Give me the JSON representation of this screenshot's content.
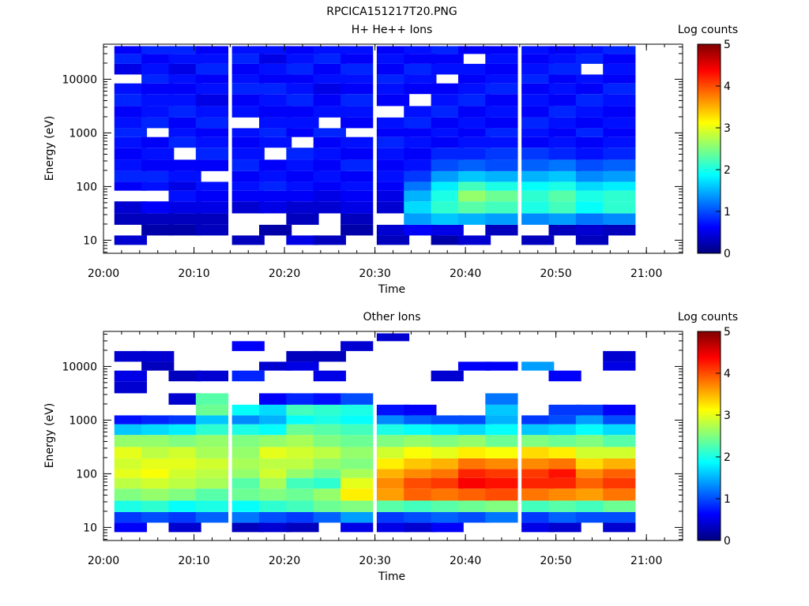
{
  "figure_title": "RPCICA151217T20.PNG",
  "chart_data": [
    {
      "type": "heatmap",
      "title": "H+ He++ Ions",
      "xlabel": "Time",
      "ylabel": "Energy (eV)",
      "x_ticks": [
        "20:00",
        "20:10",
        "20:20",
        "20:30",
        "20:40",
        "20:50",
        "21:00"
      ],
      "x_range": [
        "20:00",
        "21:04"
      ],
      "y_scale": "log",
      "y_ticks": [
        "10",
        "100",
        "1000",
        "10000"
      ],
      "y_range": [
        5.7,
        45000
      ],
      "time_bins": [
        "20:03",
        "20:06",
        "20:09",
        "20:12",
        "20:16",
        "20:19",
        "20:22",
        "20:25",
        "20:28",
        "20:32",
        "20:35",
        "20:38",
        "20:41",
        "20:44",
        "20:48",
        "20:51",
        "20:54",
        "20:57"
      ],
      "energy_bins": [
        10,
        15,
        25,
        40,
        70,
        100,
        150,
        250,
        400,
        700,
        1000,
        1500,
        2500,
        4000,
        7000,
        10000,
        15000,
        25000,
        35000
      ],
      "values": [
        [
          0.4,
          null,
          0.3,
          0.4,
          null,
          0.6,
          0.8,
          0.7,
          0.6,
          0.7,
          0.8,
          0.7,
          0.6,
          0.8,
          0.7,
          null,
          0.5,
          0.8,
          0.6
        ],
        [
          null,
          0.2,
          0.3,
          0.6,
          null,
          0.7,
          0.8,
          0.6,
          0.7,
          0.6,
          null,
          0.8,
          0.7,
          0.7,
          0.6,
          0.8,
          0.7,
          0.6,
          0.8
        ],
        [
          null,
          0.2,
          0.3,
          0.5,
          0.7,
          0.5,
          0.7,
          0.6,
          null,
          0.8,
          0.7,
          0.6,
          0.8,
          0.7,
          0.6,
          0.7,
          0.5,
          0.7,
          0.8
        ],
        [
          null,
          0.3,
          0.3,
          0.5,
          0.6,
          0.7,
          null,
          0.6,
          0.8,
          0.7,
          0.6,
          0.8,
          0.7,
          0.5,
          0.7,
          0.6,
          0.8,
          0.7,
          0.6
        ],
        [
          0.3,
          null,
          null,
          0.4,
          0.6,
          0.7,
          0.6,
          0.8,
          0.7,
          0.6,
          0.7,
          null,
          0.7,
          0.6,
          0.8,
          0.7,
          0.6,
          0.8,
          0.7
        ],
        [
          null,
          0.2,
          null,
          0.5,
          0.6,
          0.8,
          0.7,
          0.6,
          null,
          0.7,
          0.8,
          0.7,
          0.6,
          0.7,
          0.8,
          0.6,
          0.7,
          0.5,
          0.7
        ],
        [
          0.5,
          null,
          0.3,
          0.4,
          0.6,
          0.7,
          0.6,
          0.7,
          0.8,
          null,
          0.6,
          0.7,
          0.6,
          0.8,
          0.7,
          0.6,
          0.8,
          0.7,
          0.6
        ],
        [
          0.3,
          null,
          null,
          0.4,
          0.5,
          0.6,
          0.7,
          0.6,
          0.7,
          0.6,
          0.8,
          null,
          0.7,
          0.6,
          0.5,
          0.7,
          0.6,
          0.8,
          0.7
        ],
        [
          null,
          0.2,
          0.3,
          0.5,
          0.6,
          0.7,
          0.6,
          0.8,
          0.6,
          0.7,
          null,
          0.6,
          0.7,
          0.8,
          0.6,
          0.7,
          0.8,
          0.6,
          0.7
        ],
        [
          0.3,
          0.4,
          null,
          0.4,
          0.5,
          0.6,
          0.7,
          0.6,
          0.7,
          0.8,
          0.6,
          0.7,
          null,
          0.6,
          0.7,
          0.8,
          0.6,
          0.7,
          0.6
        ],
        [
          null,
          0.6,
          1.4,
          1.7,
          1.5,
          1.2,
          0.9,
          0.7,
          0.6,
          0.7,
          0.6,
          0.8,
          0.7,
          null,
          0.6,
          0.7,
          0.8,
          0.6,
          0.7
        ],
        [
          0.2,
          0.5,
          1.6,
          2.1,
          2.0,
          1.8,
          1.4,
          1.0,
          0.8,
          0.6,
          0.7,
          0.6,
          0.8,
          0.7,
          0.6,
          null,
          0.7,
          0.6,
          0.8
        ],
        [
          0.4,
          null,
          1.5,
          2.3,
          2.6,
          2.2,
          1.6,
          1.1,
          0.8,
          0.7,
          0.6,
          0.7,
          0.6,
          0.8,
          0.7,
          0.6,
          0.7,
          null,
          0.6
        ],
        [
          null,
          0.3,
          1.4,
          2.2,
          2.4,
          2.0,
          1.5,
          1.0,
          0.9,
          0.7,
          0.8,
          0.6,
          0.7,
          0.6,
          0.8,
          0.7,
          0.6,
          0.7,
          0.6
        ],
        [
          0.3,
          null,
          1.3,
          2.0,
          2.1,
          1.9,
          1.5,
          1.1,
          0.9,
          0.6,
          0.7,
          0.8,
          0.6,
          0.7,
          0.6,
          0.8,
          0.7,
          0.6,
          0.7
        ],
        [
          null,
          0.3,
          1.4,
          2.2,
          2.3,
          2.0,
          1.6,
          1.2,
          0.8,
          0.7,
          0.6,
          0.7,
          0.8,
          0.6,
          0.7,
          0.6,
          0.8,
          0.7,
          0.6
        ],
        [
          0.3,
          0.4,
          1.2,
          1.9,
          2.0,
          1.7,
          1.3,
          1.0,
          0.7,
          0.6,
          0.8,
          0.6,
          0.7,
          0.8,
          0.6,
          0.7,
          null,
          0.8,
          0.7
        ],
        [
          null,
          0.3,
          1.3,
          2.1,
          2.1,
          1.8,
          1.4,
          1.1,
          0.8,
          0.7,
          0.6,
          0.7,
          0.6,
          0.7,
          0.8,
          0.6,
          0.7,
          0.6,
          0.8
        ]
      ],
      "colorbar": {
        "label": "Log counts",
        "ticks": [
          "0",
          "1",
          "2",
          "3",
          "4",
          "5"
        ],
        "range": [
          0,
          5
        ],
        "colormap": "jet"
      }
    },
    {
      "type": "heatmap",
      "title": "Other Ions",
      "xlabel": "Time",
      "ylabel": "Energy (eV)",
      "x_ticks": [
        "20:00",
        "20:10",
        "20:20",
        "20:30",
        "20:40",
        "20:50",
        "21:00"
      ],
      "x_range": [
        "20:00",
        "21:04"
      ],
      "y_scale": "log",
      "y_ticks": [
        "10",
        "100",
        "1000",
        "10000"
      ],
      "y_range": [
        5.7,
        45000
      ],
      "time_bins": [
        "20:03",
        "20:06",
        "20:09",
        "20:12",
        "20:16",
        "20:19",
        "20:22",
        "20:25",
        "20:28",
        "20:32",
        "20:35",
        "20:38",
        "20:41",
        "20:44",
        "20:48",
        "20:51",
        "20:54",
        "20:57"
      ],
      "energy_bins": [
        10,
        15,
        25,
        40,
        70,
        100,
        150,
        250,
        400,
        700,
        1000,
        1500,
        2500,
        4000,
        7000,
        10000,
        15000,
        25000,
        35000
      ],
      "values": [
        [
          0.6,
          0.9,
          2.0,
          2.5,
          2.8,
          3.0,
          2.9,
          3.0,
          2.6,
          1.6,
          0.7,
          null,
          null,
          0.4,
          0.5,
          null,
          0.4,
          null,
          null
        ],
        [
          null,
          1.0,
          2.1,
          2.6,
          2.9,
          3.1,
          3.0,
          2.8,
          2.6,
          1.7,
          0.8,
          null,
          null,
          null,
          null,
          0.3,
          0.4,
          null,
          null
        ],
        [
          0.4,
          0.9,
          1.9,
          2.5,
          2.8,
          2.9,
          3.0,
          2.9,
          2.5,
          1.8,
          0.9,
          null,
          0.4,
          null,
          0.3,
          null,
          null,
          null,
          null
        ],
        [
          null,
          1.1,
          2.0,
          2.3,
          2.7,
          2.8,
          2.9,
          2.7,
          2.6,
          2.1,
          1.6,
          2.4,
          2.3,
          null,
          0.4,
          null,
          null,
          null,
          null
        ],
        [
          0.3,
          1.2,
          1.9,
          2.4,
          2.3,
          2.6,
          2.7,
          2.6,
          2.5,
          2.0,
          1.3,
          1.9,
          null,
          null,
          0.8,
          null,
          null,
          0.6,
          null
        ],
        [
          0.4,
          1.0,
          2.1,
          2.5,
          2.7,
          2.9,
          2.8,
          3.0,
          2.6,
          1.9,
          1.5,
          1.7,
          0.6,
          null,
          null,
          0.4,
          null,
          null,
          null
        ],
        [
          0.3,
          0.9,
          2.2,
          2.4,
          2.2,
          2.6,
          2.8,
          2.9,
          2.7,
          2.4,
          1.9,
          2.2,
          0.8,
          null,
          null,
          0.5,
          0.3,
          null,
          null
        ],
        [
          null,
          1.1,
          2.4,
          2.6,
          2.1,
          2.4,
          2.6,
          2.8,
          2.5,
          2.3,
          2.0,
          2.1,
          0.7,
          null,
          0.5,
          null,
          0.3,
          null,
          null
        ],
        [
          0.5,
          1.4,
          2.5,
          3.2,
          3.0,
          2.7,
          2.5,
          2.6,
          2.4,
          2.2,
          1.9,
          2.0,
          1.0,
          null,
          null,
          null,
          null,
          0.4,
          null
        ],
        [
          0.5,
          0.9,
          2.3,
          3.6,
          3.7,
          3.5,
          3.2,
          2.9,
          2.5,
          2.0,
          1.3,
          0.7,
          null,
          null,
          null,
          null,
          null,
          null,
          0.4
        ],
        [
          0.4,
          1.0,
          2.2,
          3.9,
          4.0,
          3.7,
          3.4,
          3.1,
          2.6,
          1.9,
          1.1,
          0.6,
          null,
          null,
          null,
          null,
          null,
          null,
          null
        ],
        [
          0.6,
          1.1,
          2.3,
          3.8,
          4.1,
          3.8,
          3.5,
          3.0,
          2.5,
          1.8,
          1.0,
          null,
          null,
          null,
          0.4,
          null,
          null,
          null,
          null
        ],
        [
          null,
          1.0,
          2.4,
          3.9,
          4.4,
          4.2,
          3.8,
          3.2,
          2.6,
          1.7,
          1.0,
          null,
          null,
          null,
          null,
          0.6,
          null,
          null,
          null
        ],
        [
          null,
          1.2,
          2.5,
          4.0,
          4.3,
          4.1,
          3.7,
          3.1,
          2.4,
          1.9,
          1.5,
          1.6,
          1.2,
          null,
          null,
          0.6,
          null,
          null,
          null
        ],
        [
          0.5,
          0.9,
          2.2,
          3.8,
          4.2,
          4.1,
          3.7,
          3.3,
          2.5,
          1.6,
          0.9,
          null,
          null,
          null,
          null,
          1.4,
          null,
          null,
          null
        ],
        [
          0.4,
          1.1,
          2.3,
          3.7,
          4.2,
          4.3,
          3.8,
          3.2,
          2.4,
          1.7,
          1.0,
          0.9,
          null,
          null,
          0.6,
          null,
          null,
          null,
          null
        ],
        [
          null,
          1.0,
          2.2,
          3.6,
          3.9,
          3.7,
          3.3,
          2.9,
          2.5,
          1.9,
          1.4,
          0.9,
          null,
          null,
          null,
          null,
          null,
          null,
          null
        ],
        [
          0.4,
          1.0,
          2.4,
          3.8,
          4.1,
          3.9,
          3.5,
          2.9,
          2.3,
          1.7,
          1.0,
          0.6,
          null,
          null,
          null,
          0.5,
          0.4,
          null,
          null
        ]
      ],
      "colorbar": {
        "label": "Log counts",
        "ticks": [
          "0",
          "1",
          "2",
          "3",
          "4",
          "5"
        ],
        "range": [
          0,
          5
        ],
        "colormap": "jet"
      }
    }
  ]
}
